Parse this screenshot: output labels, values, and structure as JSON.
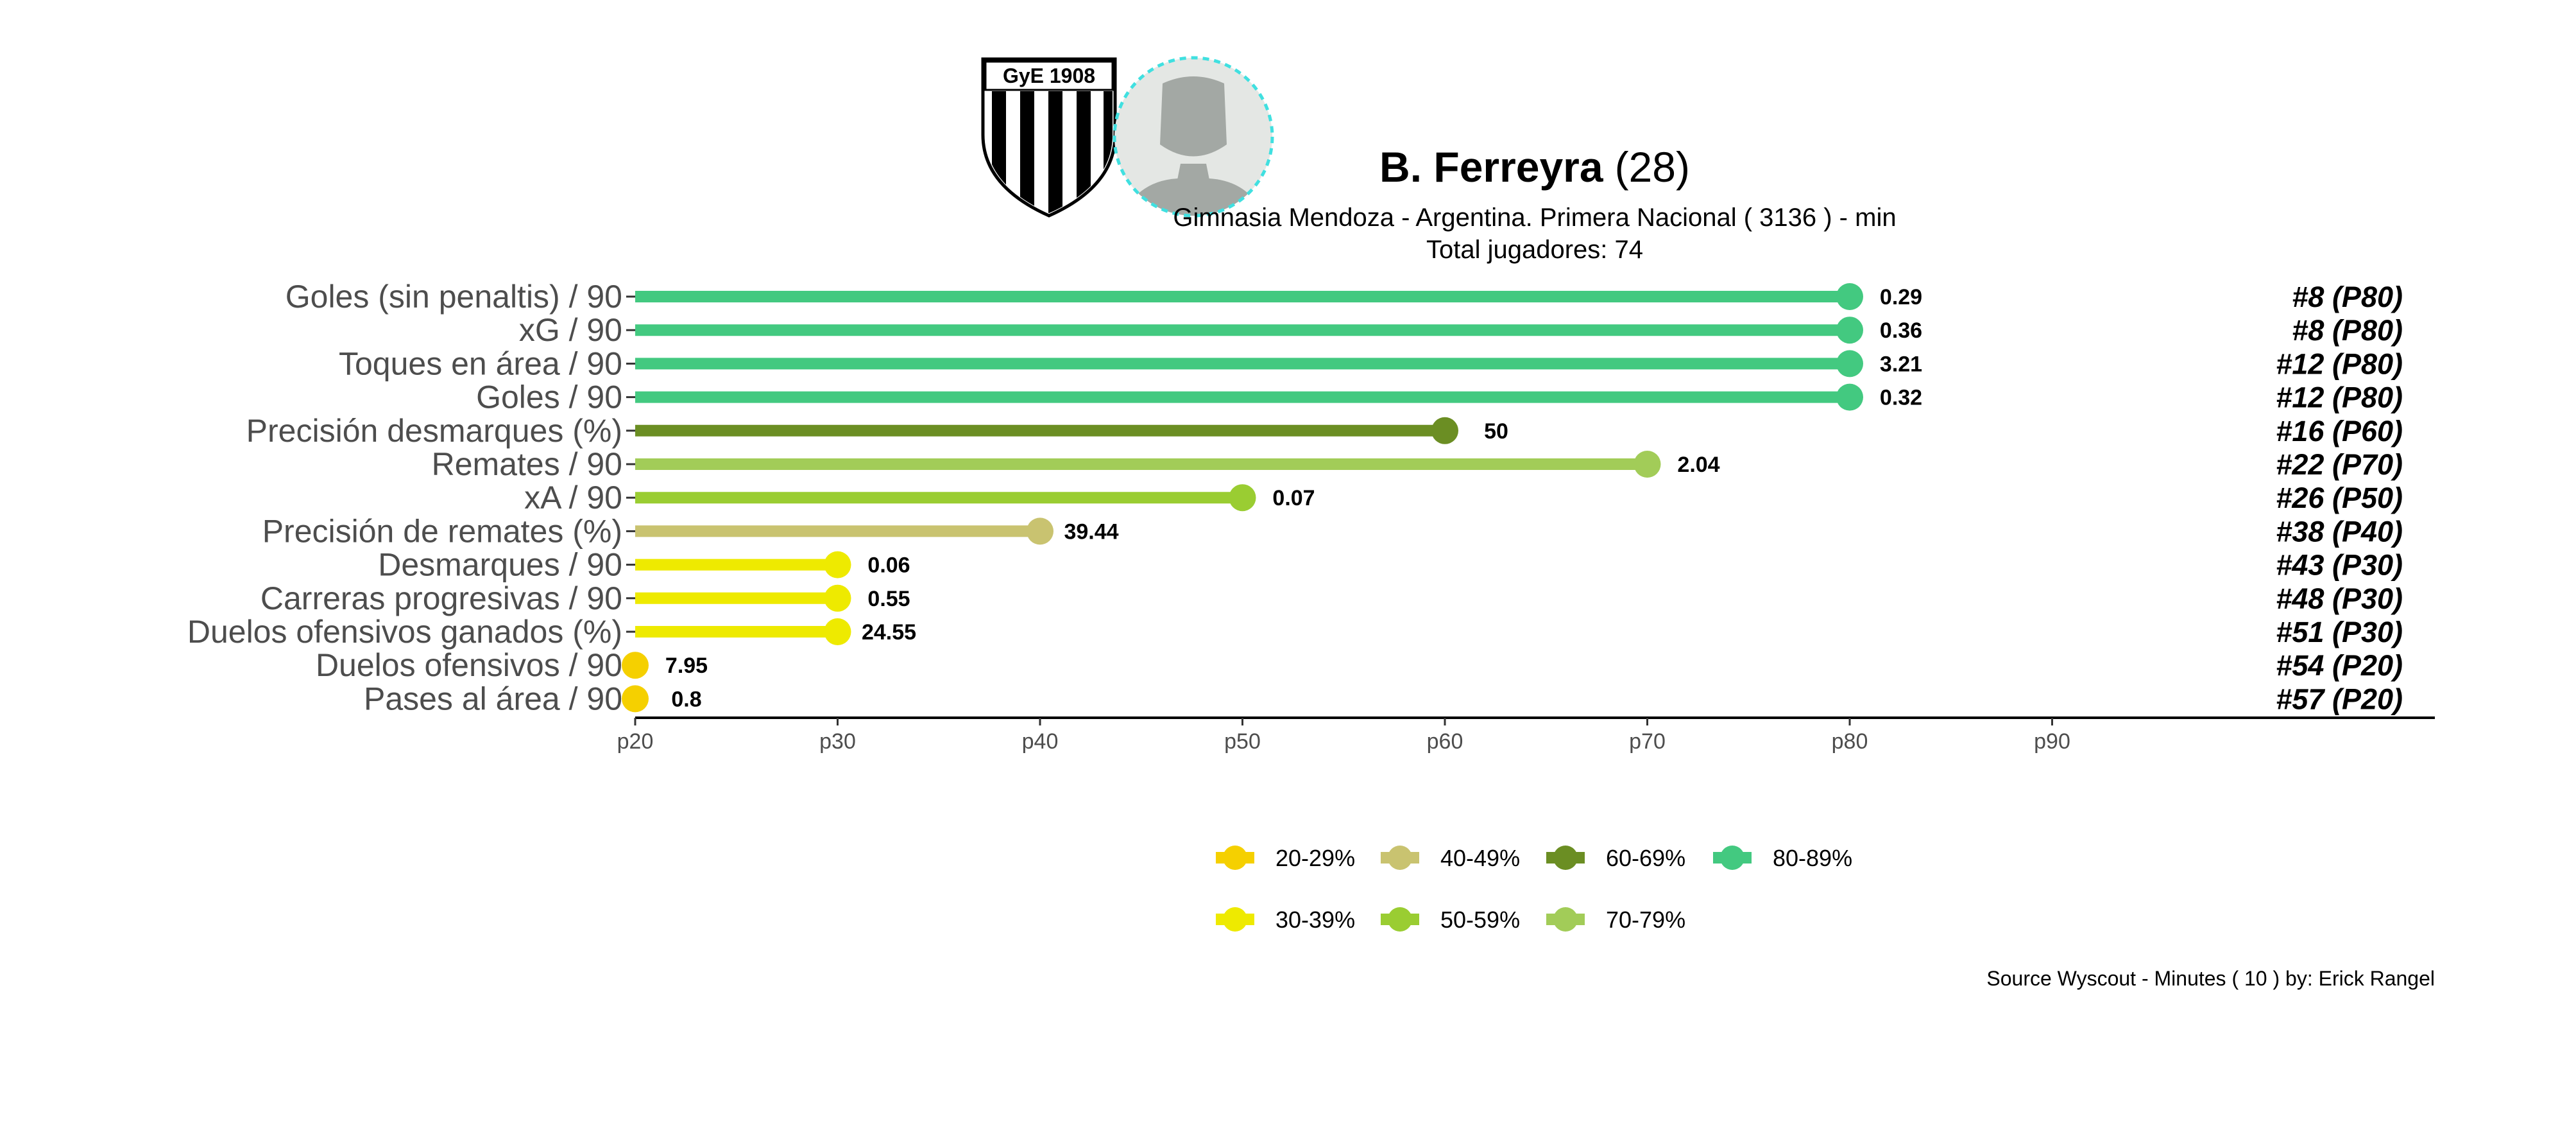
{
  "header": {
    "player_name": "B. Ferreyra",
    "player_age": "(28)",
    "subtitle": "Gimnasia Mendoza  -  Argentina. Primera Nacional  ( 3136 ) - min",
    "total_players": "Total jugadores:  74",
    "club_logo_text": "GyE 1908",
    "club_logo_icon": "club-crest-icon",
    "avatar_icon": "player-avatar-icon"
  },
  "caption": "Source Wyscout - Minutes ( 10 ) by: Erick Rangel",
  "colors": {
    "20-29%": "#F5D000",
    "30-39%": "#EEEA00",
    "40-49%": "#C9C370",
    "50-59%": "#9ACD32",
    "60-69%": "#6B8E23",
    "70-79%": "#A2CC58",
    "80-89%": "#43C980"
  },
  "chart_data": {
    "type": "bar",
    "orientation": "horizontal",
    "style": "lollipop",
    "categories": [
      "Goles (sin penaltis) / 90",
      "xG / 90",
      "Toques en área / 90",
      "Goles / 90",
      "Precisión desmarques (%)",
      "Remates / 90",
      "xA / 90",
      "Precisión de remates (%)",
      "Desmarques / 90",
      "Carreras progresivas / 90",
      "Duelos ofensivos ganados (%)",
      "Duelos ofensivos / 90",
      "Pases al área / 90"
    ],
    "percentiles": [
      80,
      80,
      80,
      80,
      60,
      70,
      50,
      40,
      30,
      30,
      30,
      20,
      20
    ],
    "value_labels": [
      "0.29",
      "0.36",
      "3.21",
      "0.32",
      "50",
      "2.04",
      "0.07",
      "39.44",
      "0.06",
      "0.55",
      "24.55",
      "7.95",
      "0.8"
    ],
    "ranks": [
      "#8 (P80)",
      "#8 (P80)",
      "#12 (P80)",
      "#12 (P80)",
      "#16 (P60)",
      "#22 (P70)",
      "#26 (P50)",
      "#38 (P40)",
      "#43 (P30)",
      "#48 (P30)",
      "#51 (P30)",
      "#54 (P20)",
      "#57 (P20)"
    ],
    "bins": [
      "80-89%",
      "80-89%",
      "80-89%",
      "80-89%",
      "60-69%",
      "70-79%",
      "50-59%",
      "40-49%",
      "30-39%",
      "30-39%",
      "30-39%",
      "20-29%",
      "20-29%"
    ],
    "xlim": [
      20,
      100
    ],
    "xticks": [
      20,
      30,
      40,
      50,
      60,
      70,
      80,
      90
    ],
    "xtick_labels": [
      "p20",
      "p30",
      "p40",
      "p50",
      "p60",
      "p70",
      "p80",
      "p90"
    ],
    "grid": false,
    "legend_position": "bottom",
    "legend": {
      "row1": [
        "20-29%",
        "40-49%",
        "60-69%",
        "80-89%"
      ],
      "row2": [
        "30-39%",
        "50-59%",
        "70-79%"
      ]
    }
  }
}
